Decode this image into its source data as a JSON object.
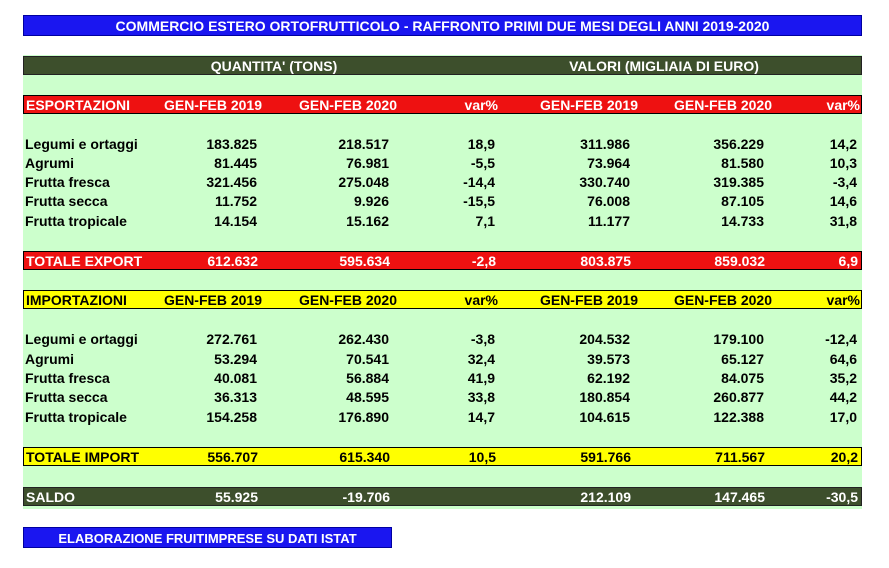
{
  "title": "COMMERCIO ESTERO ORTOFRUTTICOLO - RAFFRONTO PRIMI DUE MESI DEGLI ANNI 2019-2020",
  "group_headers": {
    "quantity": "QUANTITA' (TONS)",
    "values": "VALORI (MIGLIAIA DI EURO)"
  },
  "export": {
    "header": {
      "label": "ESPORTAZIONI",
      "c1": "GEN-FEB 2019",
      "c2": "GEN-FEB 2020",
      "c3": "var%",
      "c4": "GEN-FEB 2019",
      "c5": "GEN-FEB 2020",
      "c6": "var%"
    },
    "rows": [
      {
        "label": "Legumi e ortaggi",
        "q2019": "183.825",
        "q2020": "218.517",
        "qvar": "18,9",
        "v2019": "311.986",
        "v2020": "356.229",
        "vvar": "14,2"
      },
      {
        "label": "Agrumi",
        "q2019": "81.445",
        "q2020": "76.981",
        "qvar": "-5,5",
        "v2019": "73.964",
        "v2020": "81.580",
        "vvar": "10,3"
      },
      {
        "label": "Frutta fresca",
        "q2019": "321.456",
        "q2020": "275.048",
        "qvar": "-14,4",
        "v2019": "330.740",
        "v2020": "319.385",
        "vvar": "-3,4"
      },
      {
        "label": "Frutta secca",
        "q2019": "11.752",
        "q2020": "9.926",
        "qvar": "-15,5",
        "v2019": "76.008",
        "v2020": "87.105",
        "vvar": "14,6"
      },
      {
        "label": "Frutta tropicale",
        "q2019": "14.154",
        "q2020": "15.162",
        "qvar": "7,1",
        "v2019": "11.177",
        "v2020": "14.733",
        "vvar": "31,8"
      }
    ],
    "total": {
      "label": "TOTALE EXPORT",
      "q2019": "612.632",
      "q2020": "595.634",
      "qvar": "-2,8",
      "v2019": "803.875",
      "v2020": "859.032",
      "vvar": "6,9"
    }
  },
  "import": {
    "header": {
      "label": "IMPORTAZIONI",
      "c1": "GEN-FEB 2019",
      "c2": "GEN-FEB 2020",
      "c3": "var%",
      "c4": "GEN-FEB 2019",
      "c5": "GEN-FEB 2020",
      "c6": "var%"
    },
    "rows": [
      {
        "label": "Legumi e ortaggi",
        "q2019": "272.761",
        "q2020": "262.430",
        "qvar": "-3,8",
        "v2019": "204.532",
        "v2020": "179.100",
        "vvar": "-12,4"
      },
      {
        "label": "Agrumi",
        "q2019": "53.294",
        "q2020": "70.541",
        "qvar": "32,4",
        "v2019": "39.573",
        "v2020": "65.127",
        "vvar": "64,6"
      },
      {
        "label": "Frutta fresca",
        "q2019": "40.081",
        "q2020": "56.884",
        "qvar": "41,9",
        "v2019": "62.192",
        "v2020": "84.075",
        "vvar": "35,2"
      },
      {
        "label": "Frutta secca",
        "q2019": "36.313",
        "q2020": "48.595",
        "qvar": "33,8",
        "v2019": "180.854",
        "v2020": "260.877",
        "vvar": "44,2"
      },
      {
        "label": "Frutta tropicale",
        "q2019": "154.258",
        "q2020": "176.890",
        "qvar": "14,7",
        "v2019": "104.615",
        "v2020": "122.388",
        "vvar": "17,0"
      }
    ],
    "total": {
      "label": "TOTALE IMPORT",
      "q2019": "556.707",
      "q2020": "615.340",
      "qvar": "10,5",
      "v2019": "591.766",
      "v2020": "711.567",
      "vvar": "20,2"
    }
  },
  "saldo": {
    "label": "SALDO",
    "q2019": "55.925",
    "q2020": "-19.706",
    "v2019": "212.109",
    "v2020": "147.465",
    "vvar": "-30,5"
  },
  "footer": "ELABORAZIONE FRUITIMPRESE SU DATI ISTAT"
}
